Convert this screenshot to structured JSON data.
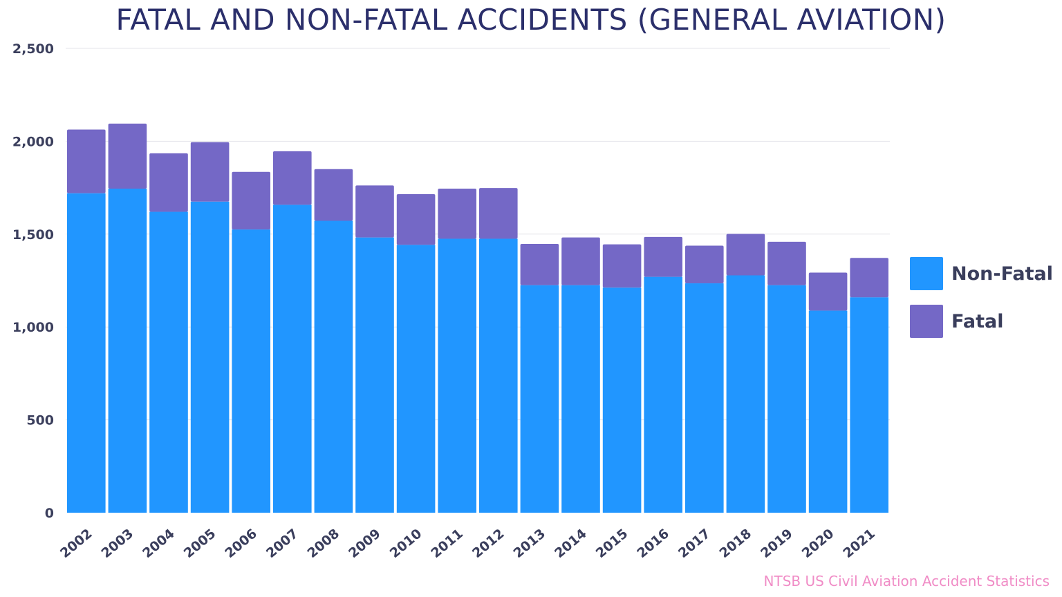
{
  "chart_data": {
    "type": "bar",
    "stacked": true,
    "title": "FATAL AND NON-FATAL ACCIDENTS (GENERAL AVIATION)",
    "xlabel": "",
    "ylabel": "",
    "ylim": [
      0,
      2500
    ],
    "yticks": [
      0,
      500,
      1000,
      1500,
      2000,
      2500
    ],
    "ytick_labels": [
      "0",
      "500",
      "1,000",
      "1,500",
      "2,000",
      "2,500"
    ],
    "grid": true,
    "legend_position": "right",
    "categories": [
      "2002",
      "2003",
      "2004",
      "2005",
      "2006",
      "2007",
      "2008",
      "2009",
      "2010",
      "2011",
      "2012",
      "2013",
      "2014",
      "2015",
      "2016",
      "2017",
      "2018",
      "2019",
      "2020",
      "2021"
    ],
    "series": [
      {
        "name": "Non-Fatal",
        "color": "#2196ff",
        "values": [
          1720,
          1745,
          1620,
          1675,
          1525,
          1658,
          1572,
          1482,
          1442,
          1475,
          1475,
          1225,
          1225,
          1212,
          1270,
          1235,
          1278,
          1225,
          1088,
          1160
        ]
      },
      {
        "name": "Fatal",
        "color": "#7468c6",
        "values": [
          343,
          350,
          315,
          320,
          310,
          288,
          278,
          280,
          273,
          270,
          273,
          222,
          257,
          233,
          215,
          203,
          223,
          234,
          205,
          212
        ]
      }
    ]
  },
  "source_note": "NTSB US Civil Aviation Accident Statistics",
  "colors": {
    "title": "#2b2f6b",
    "axis_text": "#3a3e5c",
    "grid": "#e3e3e8",
    "source": "#f08cc6"
  }
}
